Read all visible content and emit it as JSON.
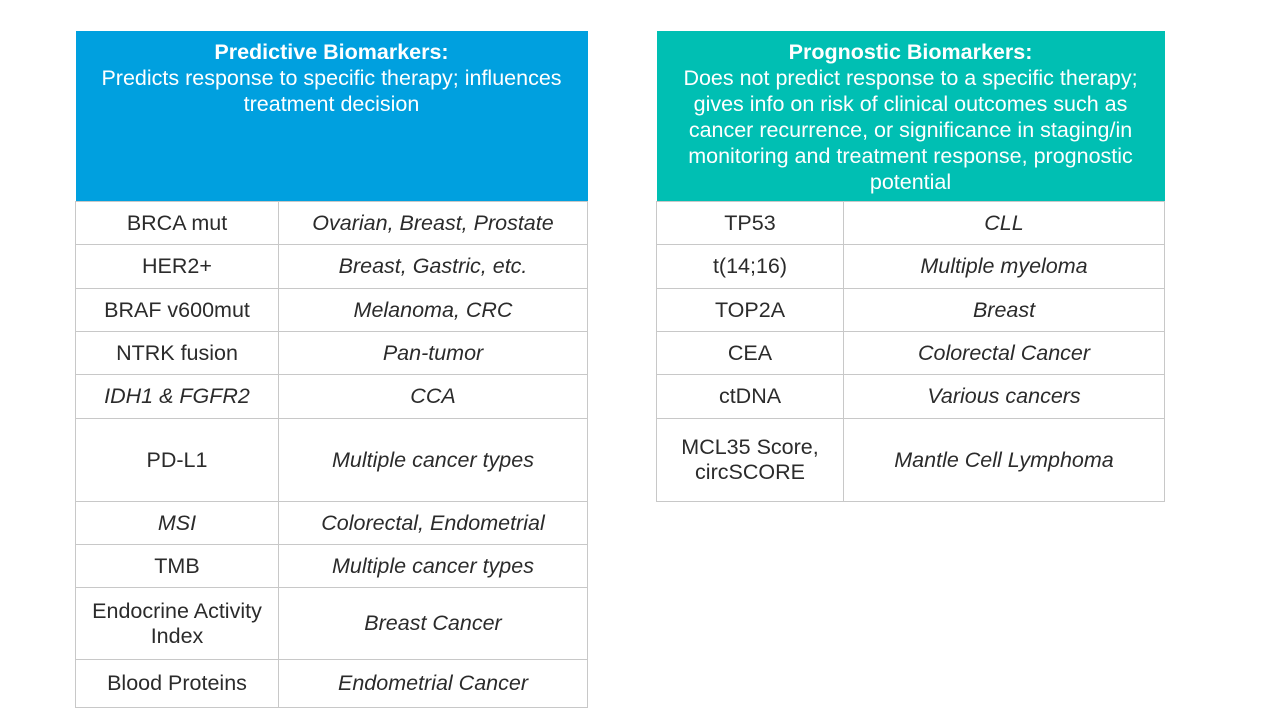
{
  "predictive": {
    "title": "Predictive Biomarkers:",
    "description": "Predicts response to specific therapy; influences treatment decision",
    "rows": [
      {
        "marker": "BRCA mut",
        "condition": "Ovarian, Breast, Prostate"
      },
      {
        "marker": "HER2+",
        "condition": "Breast, Gastric, etc."
      },
      {
        "marker": "BRAF v600mut",
        "condition": "Melanoma, CRC"
      },
      {
        "marker": "NTRK fusion",
        "condition": "Pan-tumor"
      },
      {
        "marker": "IDH1 & FGFR2",
        "condition": "CCA"
      },
      {
        "marker": "PD-L1",
        "condition": "Multiple cancer types"
      },
      {
        "marker": "MSI",
        "condition": "Colorectal, Endometrial"
      },
      {
        "marker": "TMB",
        "condition": "Multiple cancer types"
      },
      {
        "marker": "Endocrine Activity Index",
        "condition": "Breast Cancer"
      },
      {
        "marker": "Blood Proteins",
        "condition": "Endometrial Cancer"
      }
    ]
  },
  "prognostic": {
    "title": "Prognostic Biomarkers:",
    "description": "Does not predict response to a specific therapy; gives info on risk of clinical outcomes such as cancer recurrence, or significance in staging/in monitoring and treatment response, prognostic potential",
    "rows": [
      {
        "marker": "TP53",
        "condition": "CLL"
      },
      {
        "marker": "t(14;16)",
        "condition": "Multiple myeloma"
      },
      {
        "marker": "TOP2A",
        "condition": "Breast"
      },
      {
        "marker": "CEA",
        "condition": "Colorectal Cancer"
      },
      {
        "marker": "ctDNA",
        "condition": "Various cancers"
      },
      {
        "marker": "MCL35 Score, circSCORE",
        "condition": "Mantle Cell Lymphoma"
      }
    ]
  },
  "colors": {
    "predictive_header": "#00a0df",
    "prognostic_header": "#00bfb3",
    "border": "#c8c8c8",
    "text": "#2b2b2b"
  }
}
